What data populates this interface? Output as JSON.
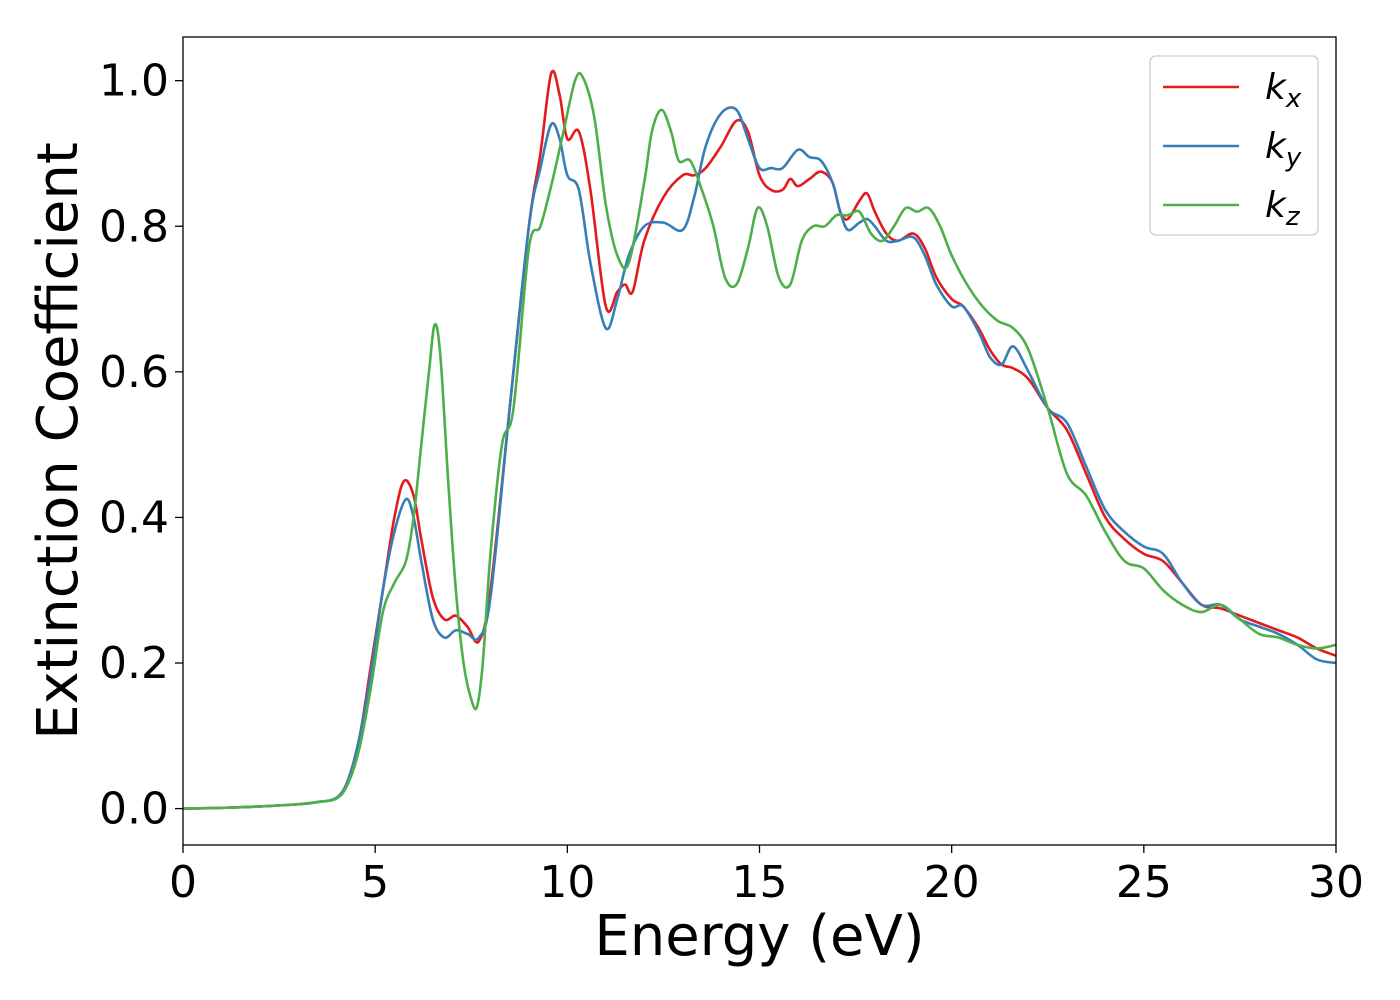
{
  "chart_data": {
    "type": "line",
    "xlabel": "Energy (eV)",
    "ylabel": "Extinction Coefficient",
    "xlim": [
      0,
      30
    ],
    "ylim": [
      -0.05,
      1.06
    ],
    "xticks": [
      0,
      5,
      10,
      15,
      20,
      25,
      30
    ],
    "yticks": [
      0.0,
      0.2,
      0.4,
      0.6,
      0.8,
      1.0
    ],
    "xtick_labels": [
      "0",
      "5",
      "10",
      "15",
      "20",
      "25",
      "30"
    ],
    "ytick_labels": [
      "0.0",
      "0.2",
      "0.4",
      "0.6",
      "0.8",
      "1.0"
    ],
    "grid": false,
    "legend_position": "top-right",
    "series": [
      {
        "name": "k",
        "subscript": "x",
        "color": "#e41a1c",
        "x": [
          0,
          1,
          2,
          3,
          3.5,
          4.0,
          4.3,
          4.6,
          4.9,
          5.2,
          5.5,
          5.75,
          6.0,
          6.2,
          6.5,
          6.8,
          7.1,
          7.4,
          7.7,
          8.0,
          8.5,
          9.0,
          9.3,
          9.58,
          9.8,
          10.0,
          10.3,
          10.6,
          11.0,
          11.3,
          11.5,
          11.7,
          12.0,
          12.5,
          13.0,
          13.3,
          13.6,
          14.0,
          14.4,
          14.7,
          15.0,
          15.3,
          15.6,
          15.8,
          16.0,
          16.3,
          16.6,
          16.9,
          17.1,
          17.3,
          17.6,
          17.8,
          18.0,
          18.3,
          18.6,
          19.0,
          19.3,
          19.6,
          20.0,
          20.3,
          20.7,
          21.0,
          21.3,
          21.6,
          22.0,
          22.5,
          23.0,
          23.5,
          24.0,
          24.5,
          25.0,
          25.5,
          26.0,
          26.5,
          27.0,
          27.5,
          28.0,
          28.5,
          29.0,
          29.5,
          30.0
        ],
        "y": [
          0.0,
          0.001,
          0.003,
          0.006,
          0.009,
          0.015,
          0.04,
          0.1,
          0.2,
          0.3,
          0.4,
          0.45,
          0.43,
          0.37,
          0.29,
          0.26,
          0.265,
          0.25,
          0.23,
          0.3,
          0.55,
          0.8,
          0.9,
          1.01,
          0.98,
          0.92,
          0.93,
          0.85,
          0.69,
          0.71,
          0.72,
          0.71,
          0.78,
          0.84,
          0.87,
          0.87,
          0.88,
          0.91,
          0.945,
          0.93,
          0.87,
          0.85,
          0.85,
          0.865,
          0.855,
          0.865,
          0.875,
          0.86,
          0.82,
          0.81,
          0.835,
          0.845,
          0.82,
          0.79,
          0.78,
          0.79,
          0.77,
          0.73,
          0.7,
          0.69,
          0.66,
          0.63,
          0.61,
          0.605,
          0.59,
          0.55,
          0.52,
          0.46,
          0.4,
          0.37,
          0.35,
          0.34,
          0.31,
          0.28,
          0.275,
          0.265,
          0.255,
          0.245,
          0.235,
          0.22,
          0.21
        ]
      },
      {
        "name": "k",
        "subscript": "y",
        "color": "#377eb8",
        "x": [
          0,
          1,
          2,
          3,
          3.5,
          4.0,
          4.3,
          4.6,
          4.9,
          5.2,
          5.5,
          5.8,
          6.0,
          6.2,
          6.5,
          6.8,
          7.1,
          7.4,
          7.7,
          8.0,
          8.5,
          9.0,
          9.3,
          9.58,
          9.8,
          10.0,
          10.3,
          10.6,
          11.0,
          11.3,
          11.6,
          12.0,
          12.5,
          13.0,
          13.3,
          13.6,
          14.0,
          14.4,
          14.7,
          15.0,
          15.3,
          15.6,
          16.0,
          16.3,
          16.6,
          16.9,
          17.1,
          17.3,
          17.6,
          17.8,
          18.0,
          18.3,
          18.6,
          19.0,
          19.3,
          19.6,
          20.0,
          20.3,
          20.7,
          21.0,
          21.3,
          21.6,
          22.0,
          22.5,
          23.0,
          23.5,
          24.0,
          24.5,
          25.0,
          25.5,
          26.0,
          26.5,
          27.0,
          27.5,
          28.0,
          28.5,
          29.0,
          29.5,
          30.0
        ],
        "y": [
          0.0,
          0.001,
          0.003,
          0.006,
          0.009,
          0.015,
          0.04,
          0.1,
          0.19,
          0.3,
          0.38,
          0.425,
          0.4,
          0.34,
          0.26,
          0.235,
          0.245,
          0.24,
          0.235,
          0.29,
          0.55,
          0.8,
          0.88,
          0.94,
          0.92,
          0.87,
          0.85,
          0.75,
          0.66,
          0.7,
          0.76,
          0.8,
          0.805,
          0.795,
          0.84,
          0.91,
          0.955,
          0.96,
          0.92,
          0.88,
          0.88,
          0.88,
          0.905,
          0.895,
          0.89,
          0.86,
          0.82,
          0.795,
          0.805,
          0.81,
          0.8,
          0.78,
          0.78,
          0.785,
          0.76,
          0.72,
          0.69,
          0.69,
          0.655,
          0.62,
          0.61,
          0.635,
          0.6,
          0.55,
          0.53,
          0.47,
          0.41,
          0.38,
          0.36,
          0.35,
          0.31,
          0.28,
          0.28,
          0.26,
          0.25,
          0.24,
          0.225,
          0.205,
          0.2
        ]
      },
      {
        "name": "k",
        "subscript": "z",
        "color": "#4daf4a",
        "x": [
          0,
          1,
          2,
          3,
          3.5,
          4.0,
          4.3,
          4.6,
          4.9,
          5.2,
          5.5,
          5.8,
          6.0,
          6.2,
          6.4,
          6.55,
          6.7,
          6.9,
          7.1,
          7.3,
          7.5,
          7.65,
          7.8,
          8.0,
          8.3,
          8.6,
          9.0,
          9.3,
          9.6,
          9.9,
          10.2,
          10.4,
          10.7,
          11.0,
          11.3,
          11.6,
          12.0,
          12.2,
          12.45,
          12.7,
          12.9,
          13.2,
          13.5,
          13.8,
          14.1,
          14.4,
          14.7,
          14.95,
          15.2,
          15.5,
          15.8,
          16.1,
          16.4,
          16.7,
          17.0,
          17.3,
          17.6,
          17.9,
          18.2,
          18.5,
          18.8,
          19.1,
          19.4,
          19.7,
          20.0,
          20.4,
          20.8,
          21.2,
          21.6,
          22.0,
          22.5,
          23.0,
          23.5,
          24.0,
          24.5,
          25.0,
          25.5,
          26.0,
          26.5,
          27.0,
          27.5,
          28.0,
          28.5,
          29.0,
          29.5,
          30.0
        ],
        "y": [
          0.0,
          0.001,
          0.003,
          0.006,
          0.009,
          0.014,
          0.035,
          0.085,
          0.17,
          0.27,
          0.31,
          0.34,
          0.4,
          0.5,
          0.6,
          0.665,
          0.62,
          0.45,
          0.3,
          0.2,
          0.15,
          0.14,
          0.2,
          0.35,
          0.5,
          0.55,
          0.77,
          0.8,
          0.86,
          0.93,
          1.0,
          1.005,
          0.95,
          0.83,
          0.76,
          0.75,
          0.86,
          0.93,
          0.96,
          0.93,
          0.89,
          0.89,
          0.85,
          0.8,
          0.73,
          0.72,
          0.77,
          0.825,
          0.8,
          0.73,
          0.72,
          0.78,
          0.8,
          0.8,
          0.815,
          0.815,
          0.82,
          0.79,
          0.78,
          0.8,
          0.825,
          0.82,
          0.825,
          0.8,
          0.76,
          0.72,
          0.69,
          0.67,
          0.66,
          0.63,
          0.55,
          0.46,
          0.43,
          0.38,
          0.34,
          0.33,
          0.3,
          0.28,
          0.27,
          0.28,
          0.26,
          0.24,
          0.235,
          0.225,
          0.22,
          0.225
        ]
      }
    ]
  }
}
